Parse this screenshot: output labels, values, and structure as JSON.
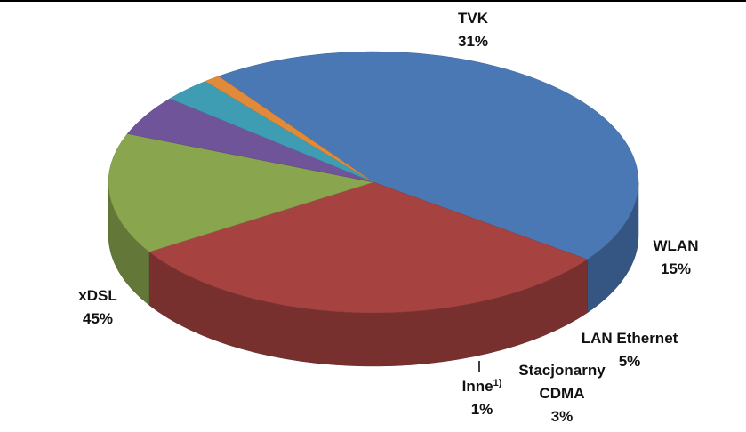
{
  "chart_data": {
    "type": "pie3d",
    "categories": [
      "xDSL",
      "TVK",
      "WLAN",
      "LAN Ethernet",
      "Stacjonarny CDMA",
      "Inne"
    ],
    "category_superscripts": [
      null,
      null,
      null,
      null,
      null,
      "1)"
    ],
    "values": [
      45,
      31,
      15,
      5,
      3,
      1
    ],
    "value_labels": [
      "45%",
      "31%",
      "15%",
      "5%",
      "3%",
      "1%"
    ],
    "colors": [
      "#4a78b4",
      "#a64341",
      "#89a54e",
      "#70549a",
      "#3f9db3",
      "#e08a3a"
    ]
  }
}
